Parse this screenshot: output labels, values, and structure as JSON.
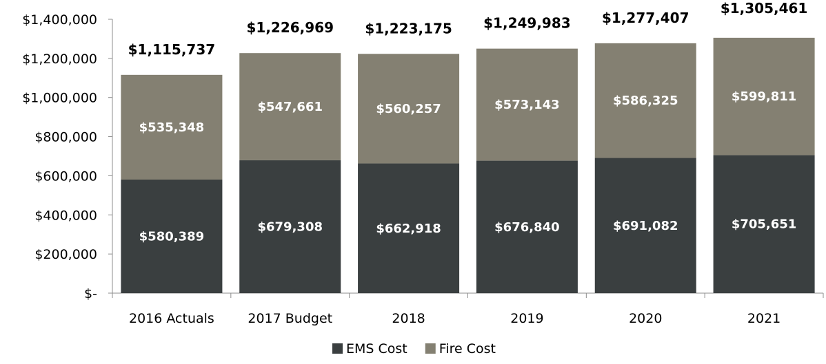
{
  "chart_data": {
    "type": "bar",
    "stacked": true,
    "categories": [
      "2016 Actuals",
      "2017 Budget",
      "2018",
      "2019",
      "2020",
      "2021"
    ],
    "series": [
      {
        "name": "EMS Cost",
        "color": "#3a3f40",
        "values": [
          580389,
          679308,
          662918,
          676840,
          691082,
          705651
        ],
        "labels": [
          "$580,389",
          "$679,308",
          "$662,918",
          "$676,840",
          "$691,082",
          "$705,651"
        ]
      },
      {
        "name": "Fire Cost",
        "color": "#848072",
        "values": [
          535348,
          547661,
          560257,
          573143,
          586325,
          599811
        ],
        "labels": [
          "$535,348",
          "$547,661",
          "$560,257",
          "$573,143",
          "$586,325",
          "$599,811"
        ]
      }
    ],
    "totals": [
      1115737,
      1226969,
      1223175,
      1249983,
      1277407,
      1305461
    ],
    "total_labels": [
      "$1,115,737",
      "$1,226,969",
      "$1,223,175",
      "$1,249,983",
      "$1,277,407",
      "$1,305,461"
    ],
    "ylim": [
      0,
      1400000
    ],
    "yticks": [
      0,
      200000,
      400000,
      600000,
      800000,
      1000000,
      1200000,
      1400000
    ],
    "ytick_labels": [
      "$-",
      "$200,000",
      "$400,000",
      "$600,000",
      "$800,000",
      "$1,000,000",
      "$1,200,000",
      "$1,400,000"
    ],
    "title": "",
    "xlabel": "",
    "ylabel": "",
    "grid": false,
    "legend_position": "bottom-center"
  }
}
